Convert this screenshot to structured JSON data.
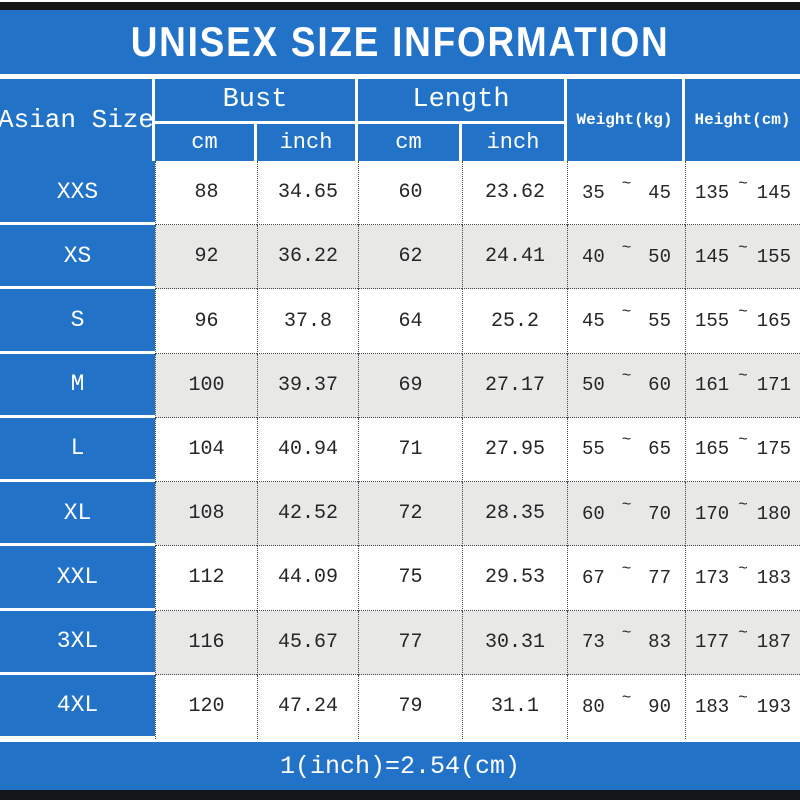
{
  "title": "UNISEX SIZE INFORMATION",
  "footer_note": "1(inch)=2.54(cm)",
  "table": {
    "corner_header": "Asian Size",
    "tilde": "~",
    "groups": [
      {
        "label": "Bust",
        "units": [
          "cm",
          "inch"
        ]
      },
      {
        "label": "Length",
        "units": [
          "cm",
          "inch"
        ]
      }
    ],
    "weight_header": "Weight(kg)",
    "height_header": "Height(cm)",
    "rows": [
      {
        "size": "XXS",
        "bust_cm": "88",
        "bust_inch": "34.65",
        "length_cm": "60",
        "length_inch": "23.62",
        "weight_min": "35",
        "weight_max": "45",
        "height_min": "135",
        "height_max": "145"
      },
      {
        "size": "XS",
        "bust_cm": "92",
        "bust_inch": "36.22",
        "length_cm": "62",
        "length_inch": "24.41",
        "weight_min": "40",
        "weight_max": "50",
        "height_min": "145",
        "height_max": "155"
      },
      {
        "size": "S",
        "bust_cm": "96",
        "bust_inch": "37.8",
        "length_cm": "64",
        "length_inch": "25.2",
        "weight_min": "45",
        "weight_max": "55",
        "height_min": "155",
        "height_max": "165"
      },
      {
        "size": "M",
        "bust_cm": "100",
        "bust_inch": "39.37",
        "length_cm": "69",
        "length_inch": "27.17",
        "weight_min": "50",
        "weight_max": "60",
        "height_min": "161",
        "height_max": "171"
      },
      {
        "size": "L",
        "bust_cm": "104",
        "bust_inch": "40.94",
        "length_cm": "71",
        "length_inch": "27.95",
        "weight_min": "55",
        "weight_max": "65",
        "height_min": "165",
        "height_max": "175"
      },
      {
        "size": "XL",
        "bust_cm": "108",
        "bust_inch": "42.52",
        "length_cm": "72",
        "length_inch": "28.35",
        "weight_min": "60",
        "weight_max": "70",
        "height_min": "170",
        "height_max": "180"
      },
      {
        "size": "XXL",
        "bust_cm": "112",
        "bust_inch": "44.09",
        "length_cm": "75",
        "length_inch": "29.53",
        "weight_min": "67",
        "weight_max": "77",
        "height_min": "173",
        "height_max": "183"
      },
      {
        "size": "3XL",
        "bust_cm": "116",
        "bust_inch": "45.67",
        "length_cm": "77",
        "length_inch": "30.31",
        "weight_min": "73",
        "weight_max": "83",
        "height_min": "177",
        "height_max": "187"
      },
      {
        "size": "4XL",
        "bust_cm": "120",
        "bust_inch": "47.24",
        "length_cm": "79",
        "length_inch": "31.1",
        "weight_min": "80",
        "weight_max": "90",
        "height_min": "183",
        "height_max": "193"
      }
    ]
  },
  "chart_data": {
    "type": "table",
    "title": "UNISEX SIZE INFORMATION",
    "columns": [
      "Asian Size",
      "Bust cm",
      "Bust inch",
      "Length cm",
      "Length inch",
      "Weight(kg)",
      "Height(cm)"
    ],
    "rows": [
      [
        "XXS",
        88,
        34.65,
        60,
        23.62,
        "35 ~ 45",
        "135 ~ 145"
      ],
      [
        "XS",
        92,
        36.22,
        62,
        24.41,
        "40 ~ 50",
        "145 ~ 155"
      ],
      [
        "S",
        96,
        37.8,
        64,
        25.2,
        "45 ~ 55",
        "155 ~ 165"
      ],
      [
        "M",
        100,
        39.37,
        69,
        27.17,
        "50 ~ 60",
        "161 ~ 171"
      ],
      [
        "L",
        104,
        40.94,
        71,
        27.95,
        "55 ~ 65",
        "165 ~ 175"
      ],
      [
        "XL",
        108,
        42.52,
        72,
        28.35,
        "60 ~ 70",
        "170 ~ 180"
      ],
      [
        "XXL",
        112,
        44.09,
        75,
        29.53,
        "67 ~ 77",
        "173 ~ 183"
      ],
      [
        "3XL",
        116,
        45.67,
        77,
        30.31,
        "73 ~ 83",
        "177 ~ 187"
      ],
      [
        "4XL",
        120,
        47.24,
        79,
        31.1,
        "80 ~ 90",
        "183 ~ 193"
      ]
    ],
    "footnote": "1(inch)=2.54(cm)"
  },
  "colors": {
    "blue": "#2273c8",
    "row_gray": "#e8e8e7",
    "bar_dark": "#15151c",
    "text_dark": "#262626",
    "dotted": "#4a4a4a"
  }
}
